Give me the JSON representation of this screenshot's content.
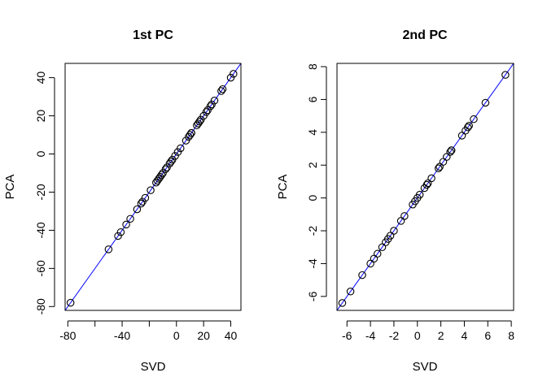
{
  "figure": {
    "line_color": "#0000ff",
    "point_color": "#000000",
    "point_marker": "open-circle"
  },
  "chart_data": [
    {
      "type": "scatter",
      "title": "1st PC",
      "xlabel": "SVD",
      "ylabel": "PCA",
      "xlim": [
        -82,
        47.5
      ],
      "ylim": [
        -82,
        47.5
      ],
      "xticks": [
        -80,
        -40,
        0,
        20,
        40
      ],
      "xtick_labels": [
        "-80",
        "-40",
        "0",
        "20",
        "40"
      ],
      "xtick_marks": [
        -80,
        -60,
        -40,
        -20,
        0,
        20,
        40
      ],
      "yticks": [
        -80,
        -60,
        -40,
        -20,
        0,
        20,
        40
      ],
      "ytick_labels": [
        "-80",
        "-60",
        "-40",
        "-20",
        "0",
        "20",
        "40"
      ],
      "reference_line": {
        "intercept": 0,
        "slope": 1
      },
      "grid": false,
      "points": {
        "x": [
          -78,
          -50,
          -43,
          -41,
          -37,
          -34,
          -29,
          -26,
          -25,
          -23,
          -19,
          -15,
          -14,
          -13,
          -12,
          -11,
          -10,
          -8,
          -7,
          -5,
          -4,
          -3,
          -1,
          1,
          3,
          7,
          9,
          10,
          11,
          11,
          15,
          16,
          17,
          18,
          20,
          22,
          23,
          25,
          26,
          28,
          33,
          34,
          40,
          42
        ],
        "y": [
          -78,
          -50,
          -43,
          -41,
          -37,
          -34,
          -29,
          -26,
          -25,
          -23,
          -19,
          -15,
          -14,
          -13,
          -12,
          -11,
          -10,
          -8,
          -7,
          -5,
          -4,
          -3,
          -1,
          1,
          3,
          7,
          9,
          10,
          11,
          11,
          15,
          16,
          17,
          18,
          20,
          22,
          23,
          25,
          26,
          28,
          33,
          34,
          40,
          42
        ]
      }
    },
    {
      "type": "scatter",
      "title": "2nd PC",
      "xlabel": "SVD",
      "ylabel": "PCA",
      "xlim": [
        -6.85,
        8.2
      ],
      "ylim": [
        -6.85,
        8.2
      ],
      "xticks": [
        -6,
        -4,
        -2,
        0,
        2,
        4,
        6,
        8
      ],
      "xtick_labels": [
        "-6",
        "-4",
        "-2",
        "0",
        "2",
        "4",
        "6",
        "8"
      ],
      "xtick_marks": [
        -6,
        -4,
        -2,
        0,
        2,
        4,
        6,
        8
      ],
      "yticks": [
        -6,
        -4,
        -2,
        0,
        2,
        4,
        6,
        8
      ],
      "ytick_labels": [
        "-6",
        "-4",
        "-2",
        "0",
        "2",
        "4",
        "6",
        "8"
      ],
      "reference_line": {
        "intercept": 0,
        "slope": 1
      },
      "grid": false,
      "points": {
        "x": [
          -6.4,
          -5.7,
          -4.7,
          -4.0,
          -3.7,
          -3.4,
          -3.0,
          -2.7,
          -2.5,
          -2.3,
          -2.0,
          -1.4,
          -1.1,
          -0.4,
          -0.2,
          0.0,
          0.2,
          0.6,
          0.8,
          0.9,
          1.2,
          1.8,
          1.9,
          2.2,
          2.5,
          2.8,
          2.9,
          2.9,
          3.8,
          4.1,
          4.3,
          4.4,
          4.8,
          5.8,
          7.5
        ],
        "y": [
          -6.4,
          -5.7,
          -4.7,
          -4.0,
          -3.7,
          -3.4,
          -3.0,
          -2.7,
          -2.5,
          -2.3,
          -2.0,
          -1.4,
          -1.1,
          -0.4,
          -0.2,
          0.0,
          0.2,
          0.6,
          0.8,
          0.9,
          1.2,
          1.8,
          1.9,
          2.2,
          2.5,
          2.8,
          2.9,
          2.9,
          3.8,
          4.1,
          4.3,
          4.4,
          4.8,
          5.8,
          7.5
        ]
      }
    }
  ]
}
